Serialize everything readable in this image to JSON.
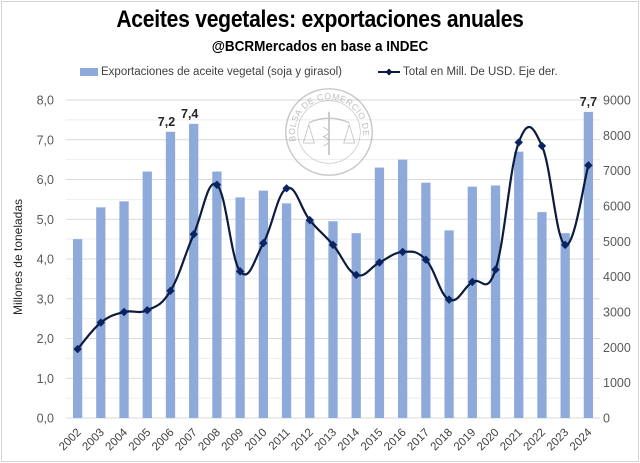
{
  "chart_data": {
    "type": "bar",
    "title": "Aceites vegetales: exportaciones anuales",
    "subtitle": "@BCRMercados en base a INDEC",
    "xlabel": "",
    "ylabel": "Millones de toneladas",
    "y2label": "",
    "categories": [
      "2002",
      "2003",
      "2004",
      "2005",
      "2006",
      "2007",
      "2008",
      "2009",
      "2010",
      "2011",
      "2012",
      "2013",
      "2014",
      "2015",
      "2016",
      "2017",
      "2018",
      "2019",
      "2020",
      "2021",
      "2022",
      "2023",
      "2024"
    ],
    "series": [
      {
        "name": "Exportaciones de aceite vegetal (soja y girasol)",
        "type": "bar",
        "axis": "left",
        "color": "#8eaadb",
        "values": [
          4.5,
          5.3,
          5.45,
          6.2,
          7.2,
          7.4,
          6.2,
          5.55,
          5.72,
          5.4,
          4.95,
          4.95,
          4.65,
          6.3,
          6.5,
          5.92,
          4.72,
          5.82,
          5.85,
          6.7,
          5.18,
          4.65,
          7.7
        ]
      },
      {
        "name": "Total en Mill. De USD. Eje der.",
        "type": "line",
        "axis": "right",
        "color": "#0d1b3e",
        "marker": "diamond",
        "smooth": true,
        "values": [
          1950,
          2700,
          3000,
          3050,
          3600,
          5200,
          6600,
          4150,
          4950,
          6500,
          5600,
          4900,
          4050,
          4400,
          4700,
          4480,
          3350,
          3850,
          4200,
          7800,
          7700,
          4900,
          7150
        ]
      }
    ],
    "data_labels": [
      {
        "category": "2006",
        "text": "7,2"
      },
      {
        "category": "2007",
        "text": "7,4"
      },
      {
        "category": "2024",
        "text": "7,7"
      }
    ],
    "ylim": [
      0,
      8
    ],
    "y_ticks": [
      "0,0",
      "1,0",
      "2,0",
      "3,0",
      "4,0",
      "5,0",
      "6,0",
      "7,0",
      "8,0"
    ],
    "y2lim": [
      0,
      9000
    ],
    "y2_ticks": [
      "0",
      "1000",
      "2000",
      "3000",
      "4000",
      "5000",
      "6000",
      "7000",
      "8000",
      "9000"
    ],
    "grid": true,
    "legend": "top",
    "watermark": "BOLSA DE COMERCIO DE ROSARIO"
  }
}
